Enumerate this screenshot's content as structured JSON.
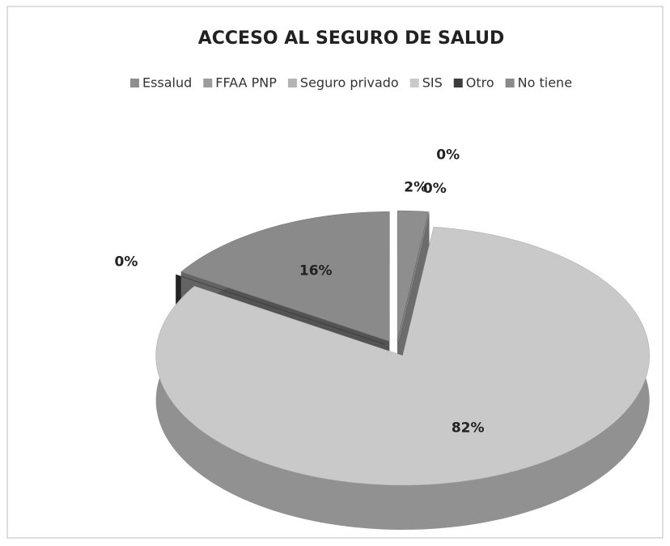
{
  "chart_data": {
    "type": "pie",
    "title": "ACCESO AL SEGURO DE SALUD",
    "categories": [
      "Essalud",
      "FFAA PNP",
      "Seguro privado",
      "SIS",
      "Otro",
      "No tiene"
    ],
    "values": [
      2,
      0,
      0,
      82,
      0,
      16
    ],
    "value_labels": [
      "2%",
      "0%",
      "0%",
      "82%",
      "0%",
      "16%"
    ],
    "colors": [
      "#8e8e8e",
      "#9c9c9c",
      "#b4b4b4",
      "#c9c9c9",
      "#3c3c3c",
      "#8a8a8a"
    ],
    "legend": "top"
  }
}
